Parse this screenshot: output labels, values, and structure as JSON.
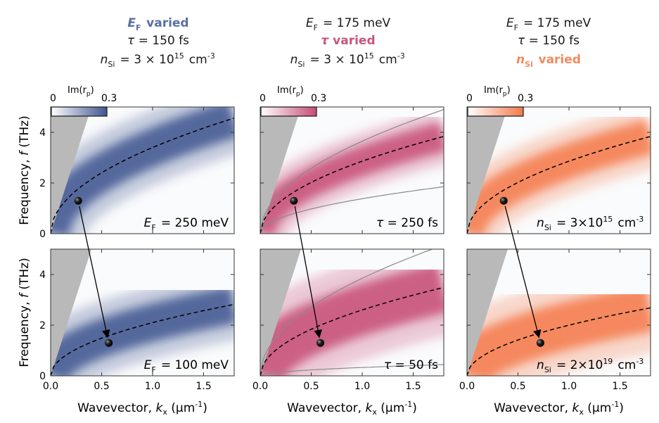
{
  "headers": [
    {
      "line1": {
        "main": "E",
        "sub": "F",
        "rest": " varied"
      },
      "line2": "τ = 150 fs",
      "line3": {
        "main": "n",
        "sub": "Si",
        "eq": " = 3 × 10",
        "sup": "15",
        "unit": " cm",
        "unitsup": "-3"
      },
      "highlight_line": 1,
      "color": "#5b6fa3"
    },
    {
      "line1": {
        "main": "E",
        "sub": "F",
        "rest": " = 175 meV"
      },
      "line2": "τ varied",
      "line3": {
        "main": "n",
        "sub": "Si",
        "eq": " = 3 × 10",
        "sup": "15",
        "unit": " cm",
        "unitsup": "-3"
      },
      "highlight_line": 2,
      "color": "#c8557a"
    },
    {
      "line1": {
        "main": "E",
        "sub": "F",
        "rest": " = 175 meV"
      },
      "line2": "τ = 150 fs",
      "line3": {
        "main": "n",
        "sub": "Si",
        "rest": " varied"
      },
      "highlight_line": 3,
      "color": "#f28a5e"
    }
  ],
  "colorbar": {
    "label_main": "Im(r",
    "label_sub": "p",
    "label_end": ")",
    "min": "0",
    "max": "0.3"
  },
  "y_axis_label": {
    "prefix": "Frequency, ",
    "var": "f",
    "unit": " (THz)"
  },
  "x_axis_label": {
    "prefix": "Wavevector, ",
    "var": "k",
    "sub": "x",
    "unit": " (μm",
    "unitsup": "-1",
    "end": ")"
  },
  "chart_data": [
    {
      "type": "heatmap",
      "panel": "top-left",
      "colormap": "#3f5591",
      "xlim": [
        0,
        1.8
      ],
      "ylim": [
        0,
        5
      ],
      "xticks": [
        "0.0",
        "0.5",
        "1.0",
        "1.5"
      ],
      "yticks": [
        "0",
        "2",
        "4"
      ],
      "dispersion_coef": 3.4,
      "band_width": 0.35,
      "marker": {
        "k": 0.27,
        "f": 1.3
      },
      "label": {
        "main": "E",
        "sub": "F",
        "rest": " = 250 meV"
      }
    },
    {
      "type": "heatmap",
      "panel": "top-middle",
      "colormap": "#c74c75",
      "xlim": [
        0,
        1.8
      ],
      "ylim": [
        0,
        5
      ],
      "xticks": [
        "0.0",
        "0.5",
        "1.0",
        "1.5"
      ],
      "yticks": [
        "0",
        "2",
        "4"
      ],
      "dispersion_coef": 2.86,
      "band_width": 0.22,
      "marker": {
        "k": 0.33,
        "f": 1.3
      },
      "guides": [
        1.38,
        3.65
      ],
      "label": {
        "main": "τ",
        "rest": " = 250 fs"
      }
    },
    {
      "type": "heatmap",
      "panel": "top-right",
      "colormap": "#f4794a",
      "xlim": [
        0,
        1.8
      ],
      "ylim": [
        0,
        5
      ],
      "xticks": [
        "0.0",
        "0.5",
        "1.0",
        "1.5"
      ],
      "yticks": [
        "0",
        "2",
        "4"
      ],
      "dispersion_coef": 2.86,
      "band_width": 0.3,
      "marker": {
        "k": 0.36,
        "f": 1.3
      },
      "label": {
        "main": "n",
        "sub": "Si",
        "eq": " = 3×10",
        "sup": "15",
        "unit": " cm",
        "unitsup": "-3"
      }
    },
    {
      "type": "heatmap",
      "panel": "bottom-left",
      "colormap": "#3f5591",
      "xlim": [
        0,
        1.8
      ],
      "ylim": [
        0,
        5
      ],
      "xticks": [
        "0.0",
        "0.5",
        "1.0",
        "1.5"
      ],
      "yticks": [
        "0",
        "2",
        "4"
      ],
      "dispersion_coef": 2.1,
      "band_width": 0.35,
      "marker": {
        "k": 0.57,
        "f": 1.3
      },
      "label": {
        "main": "E",
        "sub": "F",
        "rest": " = 100 meV"
      }
    },
    {
      "type": "heatmap",
      "panel": "bottom-middle",
      "colormap": "#c74c75",
      "xlim": [
        0,
        1.8
      ],
      "ylim": [
        0,
        5
      ],
      "xticks": [
        "0.0",
        "0.5",
        "1.0",
        "1.5"
      ],
      "yticks": [
        "0",
        "2",
        "4"
      ],
      "dispersion_coef": 2.6,
      "band_width": 0.55,
      "marker": {
        "k": 0.59,
        "f": 1.3
      },
      "guides": [
        0.33,
        3.85
      ],
      "label": {
        "main": "τ",
        "rest": " = 50 fs"
      }
    },
    {
      "type": "heatmap",
      "panel": "bottom-right",
      "colormap": "#f4794a",
      "xlim": [
        0,
        1.8
      ],
      "ylim": [
        0,
        5
      ],
      "xticks": [
        "0.0",
        "0.5",
        "1.0",
        "1.5"
      ],
      "yticks": [
        "0",
        "2",
        "4"
      ],
      "dispersion_coef": 2.0,
      "band_width": 0.5,
      "marker": {
        "k": 0.72,
        "f": 1.3
      },
      "label": {
        "main": "n",
        "sub": "Si",
        "eq": " = 2×10",
        "sup": "19",
        "unit": " cm",
        "unitsup": "-3"
      }
    }
  ]
}
